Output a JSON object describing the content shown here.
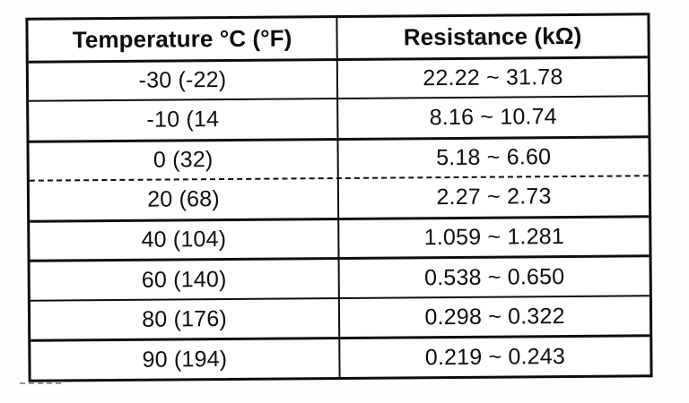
{
  "document": {
    "kind": "scanned-table",
    "colors": {
      "ink": "#0d0d0d",
      "paper": "#ffffff"
    }
  },
  "table": {
    "columns": [
      {
        "label": "Temperature °C (°F)"
      },
      {
        "label": "Resistance (kΩ)"
      }
    ],
    "rows": [
      {
        "temperature": "-30 (-22)",
        "resistance": "22.22 ~ 31.78"
      },
      {
        "temperature": "-10 (14",
        "resistance": "8.16 ~ 10.74"
      },
      {
        "temperature": "0 (32)",
        "resistance": "5.18 ~ 6.60"
      },
      {
        "temperature": "20 (68)",
        "resistance": "2.27 ~ 2.73"
      },
      {
        "temperature": "40 (104)",
        "resistance": "1.059 ~ 1.281"
      },
      {
        "temperature": "60 (140)",
        "resistance": "0.538 ~ 0.650"
      },
      {
        "temperature": "80 (176)",
        "resistance": "0.298 ~ 0.322"
      },
      {
        "temperature": "90 (194)",
        "resistance": "0.219 ~ 0.243"
      }
    ]
  }
}
